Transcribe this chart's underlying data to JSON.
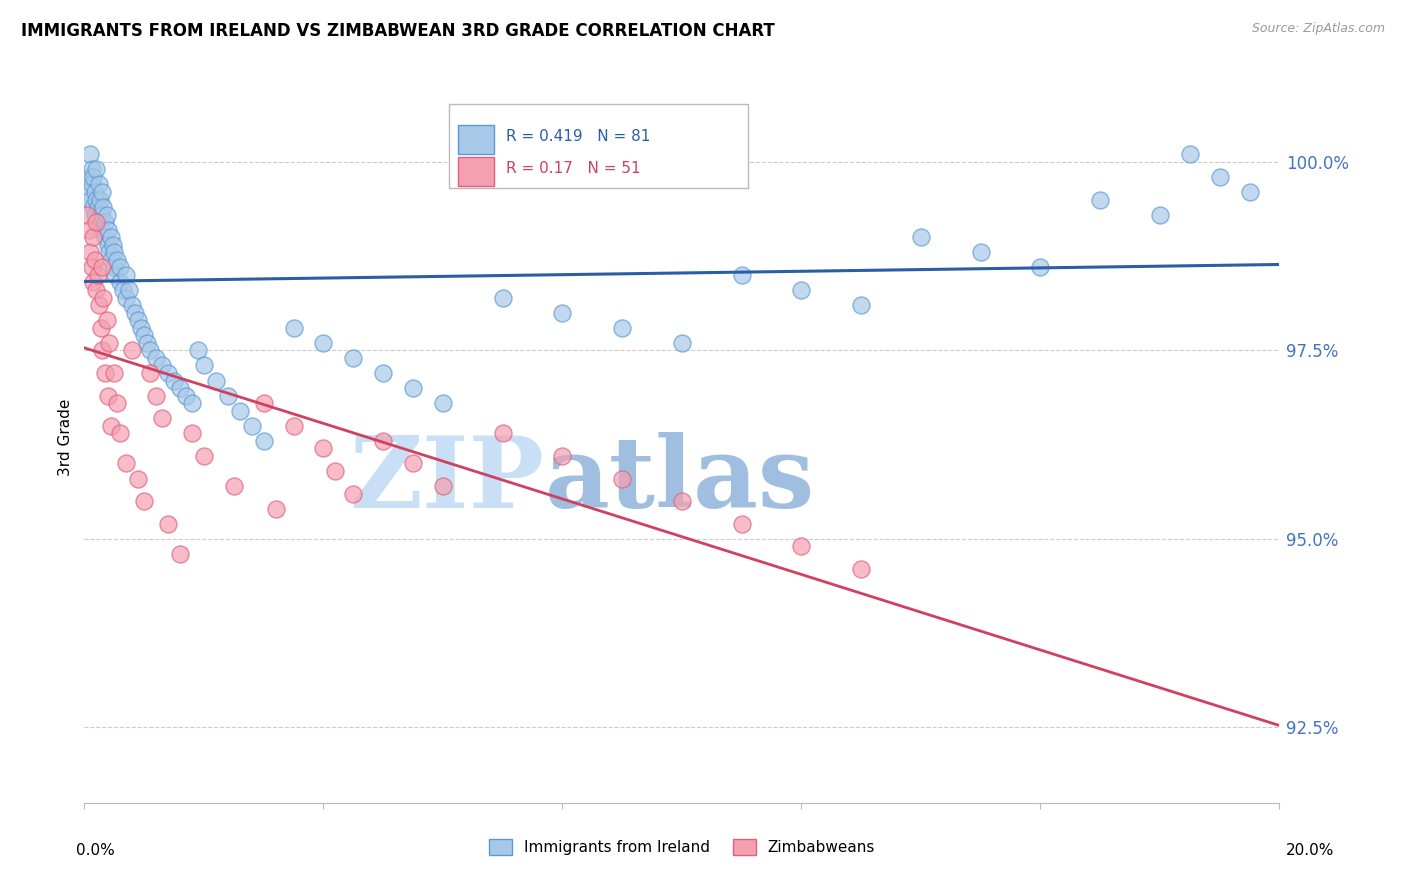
{
  "title": "IMMIGRANTS FROM IRELAND VS ZIMBABWEAN 3RD GRADE CORRELATION CHART",
  "source_text": "Source: ZipAtlas.com",
  "ylabel": "3rd Grade",
  "y_ticks": [
    92.5,
    95.0,
    97.5,
    100.0
  ],
  "y_tick_labels": [
    "92.5%",
    "95.0%",
    "97.5%",
    "100.0%"
  ],
  "x_min": 0.0,
  "x_max": 20.0,
  "y_min": 91.5,
  "y_max": 101.2,
  "legend_ireland": "Immigrants from Ireland",
  "legend_zimbabwe": "Zimbabweans",
  "R_ireland": 0.419,
  "N_ireland": 81,
  "R_zimbabwe": 0.17,
  "N_zimbabwe": 51,
  "color_ireland": "#a8c8e8",
  "color_zimbabwe": "#f4a0b0",
  "edge_ireland": "#5b9bd5",
  "edge_zimbabwe": "#e06080",
  "trendline_ireland": "#2b5fa5",
  "trendline_zimbabwe": "#d04060",
  "watermark_zip": "ZIP",
  "watermark_atlas": "atlas",
  "watermark_color_zip": "#c8dff5",
  "watermark_color_atlas": "#a0bfe0",
  "ireland_x": [
    0.05,
    0.08,
    0.1,
    0.1,
    0.12,
    0.13,
    0.15,
    0.15,
    0.17,
    0.18,
    0.2,
    0.2,
    0.22,
    0.25,
    0.25,
    0.27,
    0.28,
    0.3,
    0.3,
    0.32,
    0.35,
    0.35,
    0.38,
    0.4,
    0.4,
    0.42,
    0.45,
    0.45,
    0.48,
    0.5,
    0.5,
    0.52,
    0.55,
    0.6,
    0.6,
    0.65,
    0.7,
    0.7,
    0.75,
    0.8,
    0.85,
    0.9,
    0.95,
    1.0,
    1.05,
    1.1,
    1.2,
    1.3,
    1.4,
    1.5,
    1.6,
    1.7,
    1.8,
    1.9,
    2.0,
    2.2,
    2.4,
    2.6,
    2.8,
    3.0,
    3.5,
    4.0,
    4.5,
    5.0,
    5.5,
    6.0,
    7.0,
    8.0,
    9.0,
    10.0,
    11.0,
    12.0,
    13.0,
    14.0,
    15.0,
    16.0,
    17.0,
    18.0,
    18.5,
    19.0,
    19.5
  ],
  "ireland_y": [
    99.6,
    99.8,
    99.5,
    100.1,
    99.7,
    99.9,
    99.4,
    99.8,
    99.6,
    99.3,
    99.5,
    99.9,
    99.4,
    99.7,
    99.2,
    99.5,
    99.3,
    99.6,
    99.1,
    99.4,
    99.2,
    99.0,
    99.3,
    99.1,
    98.9,
    98.8,
    99.0,
    98.7,
    98.9,
    98.6,
    98.8,
    98.5,
    98.7,
    98.4,
    98.6,
    98.3,
    98.5,
    98.2,
    98.3,
    98.1,
    98.0,
    97.9,
    97.8,
    97.7,
    97.6,
    97.5,
    97.4,
    97.3,
    97.2,
    97.1,
    97.0,
    96.9,
    96.8,
    97.5,
    97.3,
    97.1,
    96.9,
    96.7,
    96.5,
    96.3,
    97.8,
    97.6,
    97.4,
    97.2,
    97.0,
    96.8,
    98.2,
    98.0,
    97.8,
    97.6,
    98.5,
    98.3,
    98.1,
    99.0,
    98.8,
    98.6,
    99.5,
    99.3,
    100.1,
    99.8,
    99.6
  ],
  "zimbabwe_x": [
    0.05,
    0.08,
    0.1,
    0.12,
    0.15,
    0.15,
    0.18,
    0.2,
    0.2,
    0.22,
    0.25,
    0.28,
    0.3,
    0.3,
    0.32,
    0.35,
    0.38,
    0.4,
    0.42,
    0.45,
    0.5,
    0.55,
    0.6,
    0.7,
    0.8,
    0.9,
    1.0,
    1.1,
    1.2,
    1.3,
    1.4,
    1.6,
    1.8,
    2.0,
    2.5,
    3.0,
    3.2,
    3.5,
    4.0,
    4.2,
    4.5,
    5.0,
    5.5,
    6.0,
    7.0,
    8.0,
    9.0,
    10.0,
    11.0,
    12.0,
    13.0
  ],
  "zimbabwe_y": [
    99.3,
    99.1,
    98.8,
    98.6,
    99.0,
    98.4,
    98.7,
    98.3,
    99.2,
    98.5,
    98.1,
    97.8,
    98.6,
    97.5,
    98.2,
    97.2,
    97.9,
    96.9,
    97.6,
    96.5,
    97.2,
    96.8,
    96.4,
    96.0,
    97.5,
    95.8,
    95.5,
    97.2,
    96.9,
    96.6,
    95.2,
    94.8,
    96.4,
    96.1,
    95.7,
    96.8,
    95.4,
    96.5,
    96.2,
    95.9,
    95.6,
    96.3,
    96.0,
    95.7,
    96.4,
    96.1,
    95.8,
    95.5,
    95.2,
    94.9,
    94.6
  ]
}
